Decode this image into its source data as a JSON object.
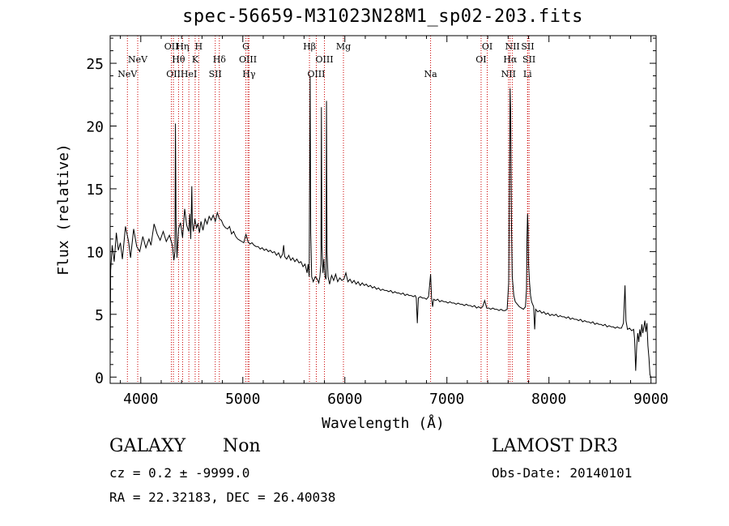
{
  "chart_data": {
    "type": "line",
    "title": "spec-56659-M31023N28M1_sp02-203.fits",
    "xlabel": "Wavelength (Å)",
    "ylabel": "Flux (relative)",
    "xlim": [
      3700,
      9050
    ],
    "ylim": [
      -0.5,
      27.2
    ],
    "x_ticks": [
      4000,
      5000,
      6000,
      7000,
      8000,
      9000
    ],
    "y_ticks": [
      0,
      5,
      10,
      15,
      20,
      25
    ],
    "grid": false,
    "line_color": "#000000",
    "marker_color": "#cc0000",
    "spectrum": [
      [
        3700,
        1
      ],
      [
        3705,
        8.5
      ],
      [
        3720,
        10.5
      ],
      [
        3740,
        9.2
      ],
      [
        3760,
        11.5
      ],
      [
        3780,
        10.1
      ],
      [
        3800,
        10.7
      ],
      [
        3820,
        9.4
      ],
      [
        3850,
        12.0
      ],
      [
        3880,
        10.8
      ],
      [
        3900,
        9.5
      ],
      [
        3930,
        11.8
      ],
      [
        3960,
        10.4
      ],
      [
        3990,
        10.0
      ],
      [
        4020,
        11.2
      ],
      [
        4050,
        10.3
      ],
      [
        4080,
        11.0
      ],
      [
        4100,
        10.5
      ],
      [
        4130,
        12.2
      ],
      [
        4160,
        11.4
      ],
      [
        4190,
        10.9
      ],
      [
        4220,
        11.6
      ],
      [
        4250,
        10.8
      ],
      [
        4280,
        11.3
      ],
      [
        4310,
        10.5
      ],
      [
        4325,
        9.3
      ],
      [
        4335,
        10.0
      ],
      [
        4340,
        20.2
      ],
      [
        4345,
        12.5
      ],
      [
        4355,
        9.5
      ],
      [
        4370,
        11.8
      ],
      [
        4390,
        12.3
      ],
      [
        4410,
        11.1
      ],
      [
        4430,
        13.4
      ],
      [
        4450,
        12.1
      ],
      [
        4470,
        11.6
      ],
      [
        4480,
        13.0
      ],
      [
        4490,
        11.0
      ],
      [
        4500,
        15.2
      ],
      [
        4505,
        12.3
      ],
      [
        4515,
        11.6
      ],
      [
        4530,
        12.6
      ],
      [
        4545,
        11.9
      ],
      [
        4560,
        12.2
      ],
      [
        4575,
        11.5
      ],
      [
        4590,
        12.4
      ],
      [
        4610,
        11.7
      ],
      [
        4630,
        12.6
      ],
      [
        4650,
        12.2
      ],
      [
        4670,
        12.8
      ],
      [
        4690,
        12.5
      ],
      [
        4710,
        12.9
      ],
      [
        4730,
        12.4
      ],
      [
        4750,
        13.1
      ],
      [
        4770,
        12.6
      ],
      [
        4790,
        12.5
      ],
      [
        4810,
        12.1
      ],
      [
        4830,
        11.9
      ],
      [
        4850,
        11.8
      ],
      [
        4870,
        12.0
      ],
      [
        4890,
        11.4
      ],
      [
        4910,
        11.6
      ],
      [
        4930,
        11.2
      ],
      [
        4950,
        11.0
      ],
      [
        4970,
        10.9
      ],
      [
        4990,
        10.8
      ],
      [
        5010,
        10.7
      ],
      [
        5030,
        11.4
      ],
      [
        5050,
        10.8
      ],
      [
        5070,
        10.6
      ],
      [
        5090,
        10.7
      ],
      [
        5110,
        10.5
      ],
      [
        5130,
        10.4
      ],
      [
        5150,
        10.4
      ],
      [
        5170,
        10.2
      ],
      [
        5190,
        10.3
      ],
      [
        5210,
        10.1
      ],
      [
        5230,
        10.2
      ],
      [
        5250,
        10.0
      ],
      [
        5270,
        10.1
      ],
      [
        5290,
        9.9
      ],
      [
        5310,
        10.0
      ],
      [
        5330,
        9.7
      ],
      [
        5350,
        9.9
      ],
      [
        5370,
        9.5
      ],
      [
        5390,
        9.8
      ],
      [
        5400,
        10.5
      ],
      [
        5410,
        9.6
      ],
      [
        5430,
        9.4
      ],
      [
        5450,
        9.7
      ],
      [
        5470,
        9.3
      ],
      [
        5490,
        9.5
      ],
      [
        5510,
        9.2
      ],
      [
        5530,
        9.4
      ],
      [
        5550,
        9.1
      ],
      [
        5570,
        9.2
      ],
      [
        5590,
        8.8
      ],
      [
        5610,
        9.0
      ],
      [
        5630,
        8.3
      ],
      [
        5640,
        9.0
      ],
      [
        5650,
        8.0
      ],
      [
        5660,
        24.0
      ],
      [
        5665,
        11.5
      ],
      [
        5675,
        8.0
      ],
      [
        5690,
        7.6
      ],
      [
        5710,
        8.0
      ],
      [
        5730,
        7.8
      ],
      [
        5745,
        7.5
      ],
      [
        5755,
        8.0
      ],
      [
        5765,
        9.0
      ],
      [
        5770,
        21.5
      ],
      [
        5775,
        10.5
      ],
      [
        5785,
        8.3
      ],
      [
        5795,
        9.4
      ],
      [
        5805,
        8.0
      ],
      [
        5815,
        7.8
      ],
      [
        5820,
        22.0
      ],
      [
        5825,
        10.0
      ],
      [
        5835,
        8.0
      ],
      [
        5850,
        7.4
      ],
      [
        5870,
        8.1
      ],
      [
        5890,
        7.7
      ],
      [
        5910,
        8.2
      ],
      [
        5930,
        7.6
      ],
      [
        5950,
        7.9
      ],
      [
        5970,
        7.7
      ],
      [
        5990,
        7.8
      ],
      [
        6010,
        8.3
      ],
      [
        6030,
        7.6
      ],
      [
        6050,
        7.8
      ],
      [
        6070,
        7.5
      ],
      [
        6090,
        7.7
      ],
      [
        6110,
        7.4
      ],
      [
        6130,
        7.6
      ],
      [
        6150,
        7.3
      ],
      [
        6170,
        7.5
      ],
      [
        6190,
        7.3
      ],
      [
        6210,
        7.4
      ],
      [
        6230,
        7.2
      ],
      [
        6250,
        7.3
      ],
      [
        6270,
        7.1
      ],
      [
        6290,
        7.2
      ],
      [
        6310,
        7.0
      ],
      [
        6330,
        7.1
      ],
      [
        6350,
        6.9
      ],
      [
        6370,
        7.0
      ],
      [
        6390,
        6.9
      ],
      [
        6410,
        6.9
      ],
      [
        6430,
        6.8
      ],
      [
        6450,
        6.9
      ],
      [
        6470,
        6.7
      ],
      [
        6490,
        6.8
      ],
      [
        6510,
        6.7
      ],
      [
        6530,
        6.7
      ],
      [
        6550,
        6.6
      ],
      [
        6570,
        6.7
      ],
      [
        6590,
        6.5
      ],
      [
        6610,
        6.6
      ],
      [
        6630,
        6.5
      ],
      [
        6650,
        6.5
      ],
      [
        6670,
        6.4
      ],
      [
        6690,
        6.5
      ],
      [
        6700,
        6.3
      ],
      [
        6710,
        4.3
      ],
      [
        6720,
        6.3
      ],
      [
        6740,
        6.4
      ],
      [
        6760,
        6.3
      ],
      [
        6780,
        6.3
      ],
      [
        6800,
        6.2
      ],
      [
        6820,
        6.4
      ],
      [
        6840,
        8.2
      ],
      [
        6850,
        6.3
      ],
      [
        6860,
        5.6
      ],
      [
        6870,
        6.2
      ],
      [
        6890,
        6.1
      ],
      [
        6910,
        6.2
      ],
      [
        6930,
        6.0
      ],
      [
        6950,
        6.1
      ],
      [
        6970,
        6.0
      ],
      [
        6990,
        6.0
      ],
      [
        7010,
        5.9
      ],
      [
        7030,
        6.0
      ],
      [
        7050,
        5.9
      ],
      [
        7070,
        5.9
      ],
      [
        7090,
        5.8
      ],
      [
        7110,
        5.9
      ],
      [
        7130,
        5.8
      ],
      [
        7150,
        5.8
      ],
      [
        7170,
        5.7
      ],
      [
        7190,
        5.8
      ],
      [
        7210,
        5.7
      ],
      [
        7230,
        5.7
      ],
      [
        7250,
        5.6
      ],
      [
        7270,
        5.7
      ],
      [
        7290,
        5.5
      ],
      [
        7310,
        5.6
      ],
      [
        7330,
        5.5
      ],
      [
        7350,
        5.6
      ],
      [
        7370,
        6.1
      ],
      [
        7390,
        5.5
      ],
      [
        7410,
        5.5
      ],
      [
        7430,
        5.4
      ],
      [
        7450,
        5.5
      ],
      [
        7470,
        5.4
      ],
      [
        7490,
        5.4
      ],
      [
        7510,
        5.3
      ],
      [
        7530,
        5.4
      ],
      [
        7550,
        5.3
      ],
      [
        7570,
        5.3
      ],
      [
        7590,
        5.4
      ],
      [
        7605,
        7.5
      ],
      [
        7615,
        17.5
      ],
      [
        7620,
        23.0
      ],
      [
        7625,
        21.0
      ],
      [
        7632,
        12.5
      ],
      [
        7640,
        8.0
      ],
      [
        7655,
        6.5
      ],
      [
        7670,
        6.0
      ],
      [
        7690,
        5.8
      ],
      [
        7710,
        5.6
      ],
      [
        7730,
        5.5
      ],
      [
        7750,
        5.4
      ],
      [
        7770,
        5.6
      ],
      [
        7780,
        7.0
      ],
      [
        7785,
        11.0
      ],
      [
        7790,
        13.0
      ],
      [
        7795,
        12.0
      ],
      [
        7800,
        9.0
      ],
      [
        7810,
        7.5
      ],
      [
        7820,
        6.5
      ],
      [
        7830,
        6.0
      ],
      [
        7850,
        5.6
      ],
      [
        7860,
        3.8
      ],
      [
        7870,
        5.4
      ],
      [
        7890,
        5.2
      ],
      [
        7910,
        5.3
      ],
      [
        7930,
        5.1
      ],
      [
        7950,
        5.2
      ],
      [
        7970,
        5.0
      ],
      [
        7990,
        5.1
      ],
      [
        8010,
        4.9
      ],
      [
        8030,
        5.0
      ],
      [
        8050,
        4.9
      ],
      [
        8070,
        5.0
      ],
      [
        8090,
        4.8
      ],
      [
        8110,
        4.9
      ],
      [
        8130,
        4.8
      ],
      [
        8150,
        4.8
      ],
      [
        8170,
        4.7
      ],
      [
        8190,
        4.8
      ],
      [
        8210,
        4.6
      ],
      [
        8230,
        4.7
      ],
      [
        8250,
        4.6
      ],
      [
        8270,
        4.6
      ],
      [
        8290,
        4.5
      ],
      [
        8310,
        4.6
      ],
      [
        8330,
        4.4
      ],
      [
        8350,
        4.5
      ],
      [
        8370,
        4.4
      ],
      [
        8390,
        4.4
      ],
      [
        8410,
        4.3
      ],
      [
        8430,
        4.4
      ],
      [
        8450,
        4.2
      ],
      [
        8470,
        4.3
      ],
      [
        8490,
        4.2
      ],
      [
        8510,
        4.2
      ],
      [
        8530,
        4.1
      ],
      [
        8550,
        4.2
      ],
      [
        8570,
        4.0
      ],
      [
        8590,
        4.1
      ],
      [
        8610,
        4.0
      ],
      [
        8630,
        4.0
      ],
      [
        8650,
        3.9
      ],
      [
        8670,
        4.0
      ],
      [
        8690,
        3.9
      ],
      [
        8710,
        3.9
      ],
      [
        8730,
        4.3
      ],
      [
        8745,
        7.3
      ],
      [
        8755,
        4.5
      ],
      [
        8770,
        3.8
      ],
      [
        8790,
        3.9
      ],
      [
        8810,
        3.7
      ],
      [
        8830,
        3.8
      ],
      [
        8840,
        3.0
      ],
      [
        8850,
        0.5
      ],
      [
        8860,
        2.5
      ],
      [
        8870,
        3.5
      ],
      [
        8880,
        2.8
      ],
      [
        8890,
        3.8
      ],
      [
        8900,
        3.2
      ],
      [
        8910,
        4.2
      ],
      [
        8920,
        3.5
      ],
      [
        8930,
        4.0
      ],
      [
        8940,
        4.5
      ],
      [
        8950,
        3.6
      ],
      [
        8960,
        4.3
      ],
      [
        8970,
        2.5
      ],
      [
        8980,
        1.5
      ],
      [
        8990,
        0.2
      ],
      [
        9000,
        0.0
      ]
    ],
    "line_markers": [
      {
        "label": "NeV",
        "wave": 3869,
        "row": 2
      },
      {
        "label": "NeV",
        "wave": 3970,
        "row": 1
      },
      {
        "label": "OII",
        "wave": 4300,
        "row": 0
      },
      {
        "label": "OII",
        "wave": 4320,
        "row": 2
      },
      {
        "label": "Hθ",
        "wave": 4370,
        "row": 1
      },
      {
        "label": "Hη",
        "wave": 4410,
        "row": 0
      },
      {
        "label": "HeI",
        "wave": 4471,
        "row": 2
      },
      {
        "label": "K",
        "wave": 4533,
        "row": 1
      },
      {
        "label": "H",
        "wave": 4568,
        "row": 0
      },
      {
        "label": "SII",
        "wave": 4730,
        "row": 2
      },
      {
        "label": "Hδ",
        "wave": 4770,
        "row": 1
      },
      {
        "label": "G",
        "wave": 5030,
        "row": 0
      },
      {
        "label": "OIII",
        "wave": 5050,
        "row": 1
      },
      {
        "label": "Hγ",
        "wave": 5060,
        "row": 2
      },
      {
        "label": "Hβ",
        "wave": 5653,
        "row": 0
      },
      {
        "label": "OIII",
        "wave": 5720,
        "row": 2
      },
      {
        "label": "OIII",
        "wave": 5800,
        "row": 1
      },
      {
        "label": "Mg",
        "wave": 5986,
        "row": 0
      },
      {
        "label": "Na",
        "wave": 6840,
        "row": 2
      },
      {
        "label": "OI",
        "wave": 7335,
        "row": 1
      },
      {
        "label": "OI",
        "wave": 7395,
        "row": 0
      },
      {
        "label": "NII",
        "wave": 7604,
        "row": 2
      },
      {
        "label": "Hα",
        "wave": 7620,
        "row": 1
      },
      {
        "label": "NII",
        "wave": 7642,
        "row": 0
      },
      {
        "label": "SII",
        "wave": 7792,
        "row": 0
      },
      {
        "label": "SII",
        "wave": 7805,
        "row": 1
      },
      {
        "label": "Li",
        "wave": 7790,
        "row": 2
      }
    ]
  },
  "footer": {
    "class_label": "GALAXY",
    "subclass": "Non",
    "survey": "LAMOST DR3",
    "cz": "cz = 0.2 ± -9999.0",
    "obs_date": "Obs-Date: 20140101",
    "coords": "RA =  22.32183, DEC =  26.40038"
  }
}
